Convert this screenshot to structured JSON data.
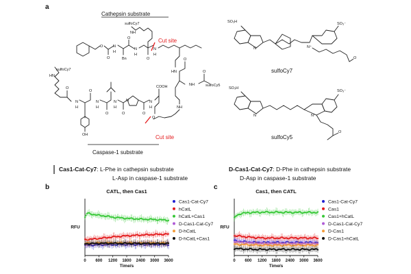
{
  "panel_a": {
    "label": "a",
    "cathepsin_title": "Cathepsin substrate",
    "caspase_title": "Caspase-1 substrate",
    "cut_site": "Cut site",
    "atoms": {
      "sulfocy7": "sulfoCy7",
      "sulfocy5": "sulfoCy5",
      "bn": "Bn",
      "n": "N",
      "h": "H",
      "nh": "NH",
      "hn": "HN",
      "nhh": "N",
      "o": "O",
      "oh": "OH",
      "cooh": "COOH",
      "so3h": "SO₃H",
      "so3": "SO₃⁻",
      "nplus": "N⁺"
    },
    "dye1_label": "sulfoCy7",
    "dye2_label": "sulfoCy5",
    "legend": {
      "name1": "Cas1-Cat-Cy7",
      "desc1a": ": L-Phe in cathepsin substrate",
      "desc1b": "L-Asp in caspase-1 substrate",
      "name2": "D-Cas1-Cat-Cy7",
      "desc2a": ": D-Phe in cathepsin substrate",
      "desc2b": "D-Asp in caspase-1 substrate"
    }
  },
  "panel_b_label": "b",
  "panel_c_label": "c",
  "chart_data": [
    {
      "type": "scatter",
      "title": "CATL, then Cas1",
      "xlabel": "Time/s",
      "ylabel": "RFU",
      "xticks": [
        0,
        600,
        1200,
        1800,
        2400,
        3000,
        3600
      ],
      "xlim": [
        0,
        3600
      ],
      "ylim": [
        0,
        1500
      ],
      "legend_position": "right",
      "series": [
        {
          "name": "Cas1-Cat-Cy7",
          "color": "#1f1fd1",
          "x": [
            0,
            300,
            600,
            900,
            1200,
            1800,
            2400,
            3000,
            3600
          ],
          "y": [
            270,
            275,
            280,
            285,
            285,
            290,
            290,
            290,
            290
          ]
        },
        {
          "name": "hCatL",
          "color": "#e31a1c",
          "x": [
            0,
            300,
            600,
            900,
            1200,
            1800,
            2400,
            3000,
            3600
          ],
          "y": [
            420,
            430,
            450,
            470,
            490,
            520,
            540,
            555,
            565
          ]
        },
        {
          "name": "hCatL+Cas1",
          "color": "#37c837",
          "x": [
            0,
            100,
            300,
            600,
            900,
            1200,
            1800,
            2400,
            3000,
            3600
          ],
          "y": [
            1000,
            1120,
            1090,
            1060,
            1040,
            1010,
            980,
            960,
            950,
            930
          ]
        },
        {
          "name": "D-Cas1-Cat-Cy7",
          "color": "#b05bd6",
          "x": [
            0,
            300,
            600,
            900,
            1200,
            1800,
            2400,
            3000,
            3600
          ],
          "y": [
            300,
            310,
            320,
            320,
            325,
            325,
            325,
            320,
            320
          ]
        },
        {
          "name": "D-hCatL",
          "color": "#f39c3c",
          "x": [
            0,
            300,
            600,
            900,
            1200,
            1800,
            2400,
            3000,
            3600
          ],
          "y": [
            320,
            330,
            335,
            335,
            335,
            335,
            330,
            330,
            330
          ]
        },
        {
          "name": "D-hCatL+Cas1",
          "color": "#111111",
          "x": [
            0,
            300,
            600,
            900,
            1200,
            1800,
            2400,
            3000,
            3600
          ],
          "y": [
            310,
            315,
            320,
            320,
            320,
            320,
            318,
            315,
            315
          ]
        }
      ]
    },
    {
      "type": "scatter",
      "title": "Cas1, then CATL",
      "xlabel": "Time/s",
      "ylabel": "RFU",
      "xticks": [
        0,
        600,
        1200,
        1800,
        2400,
        3000,
        3600
      ],
      "xlim": [
        0,
        3600
      ],
      "ylim": [
        0,
        1300
      ],
      "legend_position": "right",
      "series": [
        {
          "name": "Cas1-Cat-Cy7",
          "color": "#1f1fd1",
          "x": [
            0,
            300,
            600,
            900,
            1200,
            1800,
            2400,
            3000,
            3600
          ],
          "y": [
            340,
            320,
            310,
            300,
            300,
            300,
            300,
            300,
            300
          ]
        },
        {
          "name": "Cas1",
          "color": "#e31a1c",
          "x": [
            0,
            300,
            600,
            900,
            1200,
            1800,
            2400,
            3000,
            3600
          ],
          "y": [
            450,
            440,
            420,
            410,
            400,
            400,
            400,
            400,
            400
          ]
        },
        {
          "name": "Cas1+hCatL",
          "color": "#37c837",
          "x": [
            0,
            100,
            300,
            600,
            900,
            1200,
            1800,
            2400,
            3000,
            3600
          ],
          "y": [
            850,
            920,
            960,
            980,
            985,
            990,
            990,
            985,
            985,
            985
          ]
        },
        {
          "name": "D-Cas1-Cat-Cy7",
          "color": "#b05bd6",
          "x": [
            0,
            300,
            600,
            900,
            1200,
            1800,
            2400,
            3000,
            3600
          ],
          "y": [
            320,
            300,
            290,
            280,
            275,
            270,
            270,
            270,
            270
          ]
        },
        {
          "name": "D-Cas1",
          "color": "#f39c3c",
          "x": [
            0,
            300,
            600,
            900,
            1200,
            1800,
            2400,
            3000,
            3600
          ],
          "y": [
            260,
            250,
            245,
            240,
            235,
            235,
            235,
            235,
            235
          ]
        },
        {
          "name": "D-Cas1+hCatL",
          "color": "#111111",
          "x": [
            0,
            300,
            600,
            900,
            1200,
            1800,
            2400,
            3000,
            3600
          ],
          "y": [
            160,
            150,
            145,
            140,
            140,
            140,
            140,
            140,
            140
          ]
        }
      ]
    }
  ]
}
